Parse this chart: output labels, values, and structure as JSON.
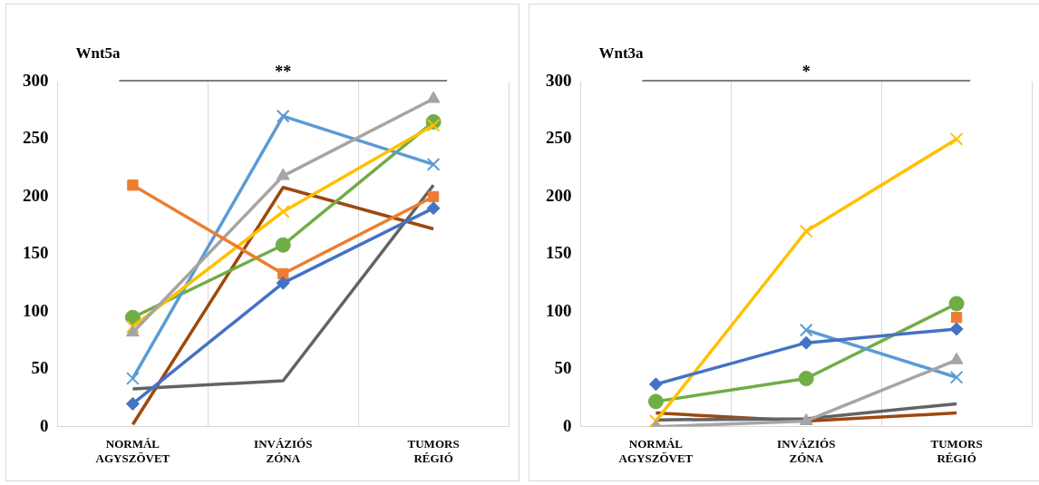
{
  "chart_data": [
    {
      "type": "line",
      "title": "Wnt5a",
      "categories": [
        "NORMÁL AGYSZÖVET",
        "INVÁZIÓS ZÓNA",
        "TUMORS RÉGIÓ"
      ],
      "ylim": [
        0,
        300
      ],
      "yticks": [
        0,
        50,
        100,
        150,
        200,
        250,
        300
      ],
      "grid": "x",
      "legend": false,
      "annotations": [
        "**"
      ],
      "series": [
        {
          "color": "#4472c4",
          "marker": "diamond",
          "values": [
            20,
            125,
            190
          ]
        },
        {
          "color": "#ed7d31",
          "marker": "square",
          "values": [
            210,
            133,
            200
          ]
        },
        {
          "color": "#a5a5a5",
          "marker": "triangle",
          "values": [
            82,
            218,
            285
          ]
        },
        {
          "color": "#ffc000",
          "marker": "cross",
          "values": [
            87,
            187,
            262
          ]
        },
        {
          "color": "#5b9bd5",
          "marker": "cross",
          "values": [
            42,
            270,
            228
          ]
        },
        {
          "color": "#70ad47",
          "marker": "circle",
          "values": [
            95,
            158,
            265
          ]
        },
        {
          "color": "#636363",
          "marker": "none",
          "values": [
            33,
            40,
            210
          ]
        },
        {
          "color": "#9e480e",
          "marker": "none",
          "values": [
            2,
            208,
            172
          ]
        }
      ]
    },
    {
      "type": "line",
      "title": "Wnt3a",
      "categories": [
        "NORMÁL AGYSZÖVET",
        "INVÁZIÓS ZÓNA",
        "TUMORS RÉGIÓ"
      ],
      "ylim": [
        0,
        300
      ],
      "yticks": [
        0,
        50,
        100,
        150,
        200,
        250,
        300
      ],
      "grid": "x",
      "legend": false,
      "annotations": [
        "*"
      ],
      "series": [
        {
          "color": "#4472c4",
          "marker": "diamond",
          "values": [
            37,
            73,
            85
          ]
        },
        {
          "color": "#ed7d31",
          "marker": "square",
          "values": [
            null,
            null,
            95
          ]
        },
        {
          "color": "#a5a5a5",
          "marker": "triangle",
          "values": [
            0,
            5,
            58
          ]
        },
        {
          "color": "#ffc000",
          "marker": "cross",
          "values": [
            5,
            170,
            250
          ]
        },
        {
          "color": "#5b9bd5",
          "marker": "cross",
          "values": [
            null,
            84,
            43
          ]
        },
        {
          "color": "#70ad47",
          "marker": "circle",
          "values": [
            22,
            42,
            107
          ]
        },
        {
          "color": "#636363",
          "marker": "none",
          "values": [
            6,
            7,
            20
          ]
        },
        {
          "color": "#9e480e",
          "marker": "none",
          "values": [
            12,
            5,
            12
          ]
        }
      ]
    }
  ]
}
